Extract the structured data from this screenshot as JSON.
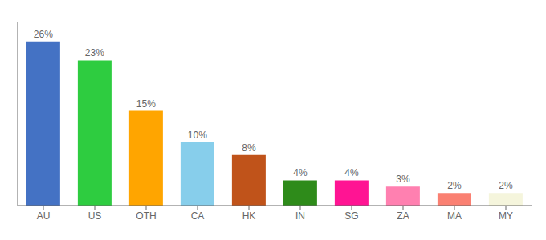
{
  "chart_data": {
    "type": "bar",
    "categories": [
      "AU",
      "US",
      "OTH",
      "CA",
      "HK",
      "IN",
      "SG",
      "ZA",
      "MA",
      "MY"
    ],
    "values": [
      26,
      23,
      15,
      10,
      8,
      4,
      4,
      3,
      2,
      2
    ],
    "value_labels": [
      "26%",
      "23%",
      "15%",
      "10%",
      "8%",
      "4%",
      "4%",
      "3%",
      "2%",
      "2%"
    ],
    "colors": [
      "#4472C4",
      "#2ECC40",
      "#FFA500",
      "#87CEEB",
      "#C0531A",
      "#2E8B1A",
      "#FF1493",
      "#FF80B0",
      "#FA8072",
      "#F5F5DC"
    ],
    "ylim": [
      0,
      29
    ],
    "data_labels": true,
    "tick_labels": "x",
    "grid": false
  }
}
